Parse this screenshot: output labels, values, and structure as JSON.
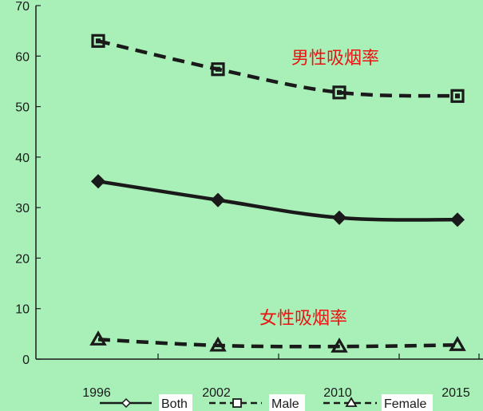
{
  "chart_data": {
    "type": "line",
    "x": [
      "1996",
      "2002",
      "2010",
      "2015"
    ],
    "ylim": [
      0,
      70
    ],
    "yticks": [
      0,
      10,
      20,
      30,
      40,
      50,
      60,
      70
    ],
    "title": "",
    "xlabel": "",
    "ylabel": "",
    "grid": false,
    "legend_position": "bottom",
    "series": [
      {
        "name": "Both",
        "values": [
          35.2,
          31.5,
          28.0,
          27.6
        ],
        "marker": "diamond",
        "dashed": false
      },
      {
        "name": "Male",
        "values": [
          63.0,
          57.4,
          52.8,
          52.1
        ],
        "marker": "square",
        "dashed": true
      },
      {
        "name": "Female",
        "values": [
          3.9,
          2.7,
          2.5,
          2.8
        ],
        "marker": "triangle",
        "dashed": true
      }
    ],
    "annotations": [
      {
        "text": "男性吸烟率",
        "series": "Male"
      },
      {
        "text": "女性吸烟率",
        "series": "Female"
      }
    ],
    "colors": {
      "background": "#a8f0b8",
      "line": "#1a1a1a",
      "annotation": "#ee1111",
      "legend_background": "#ffffff"
    }
  }
}
